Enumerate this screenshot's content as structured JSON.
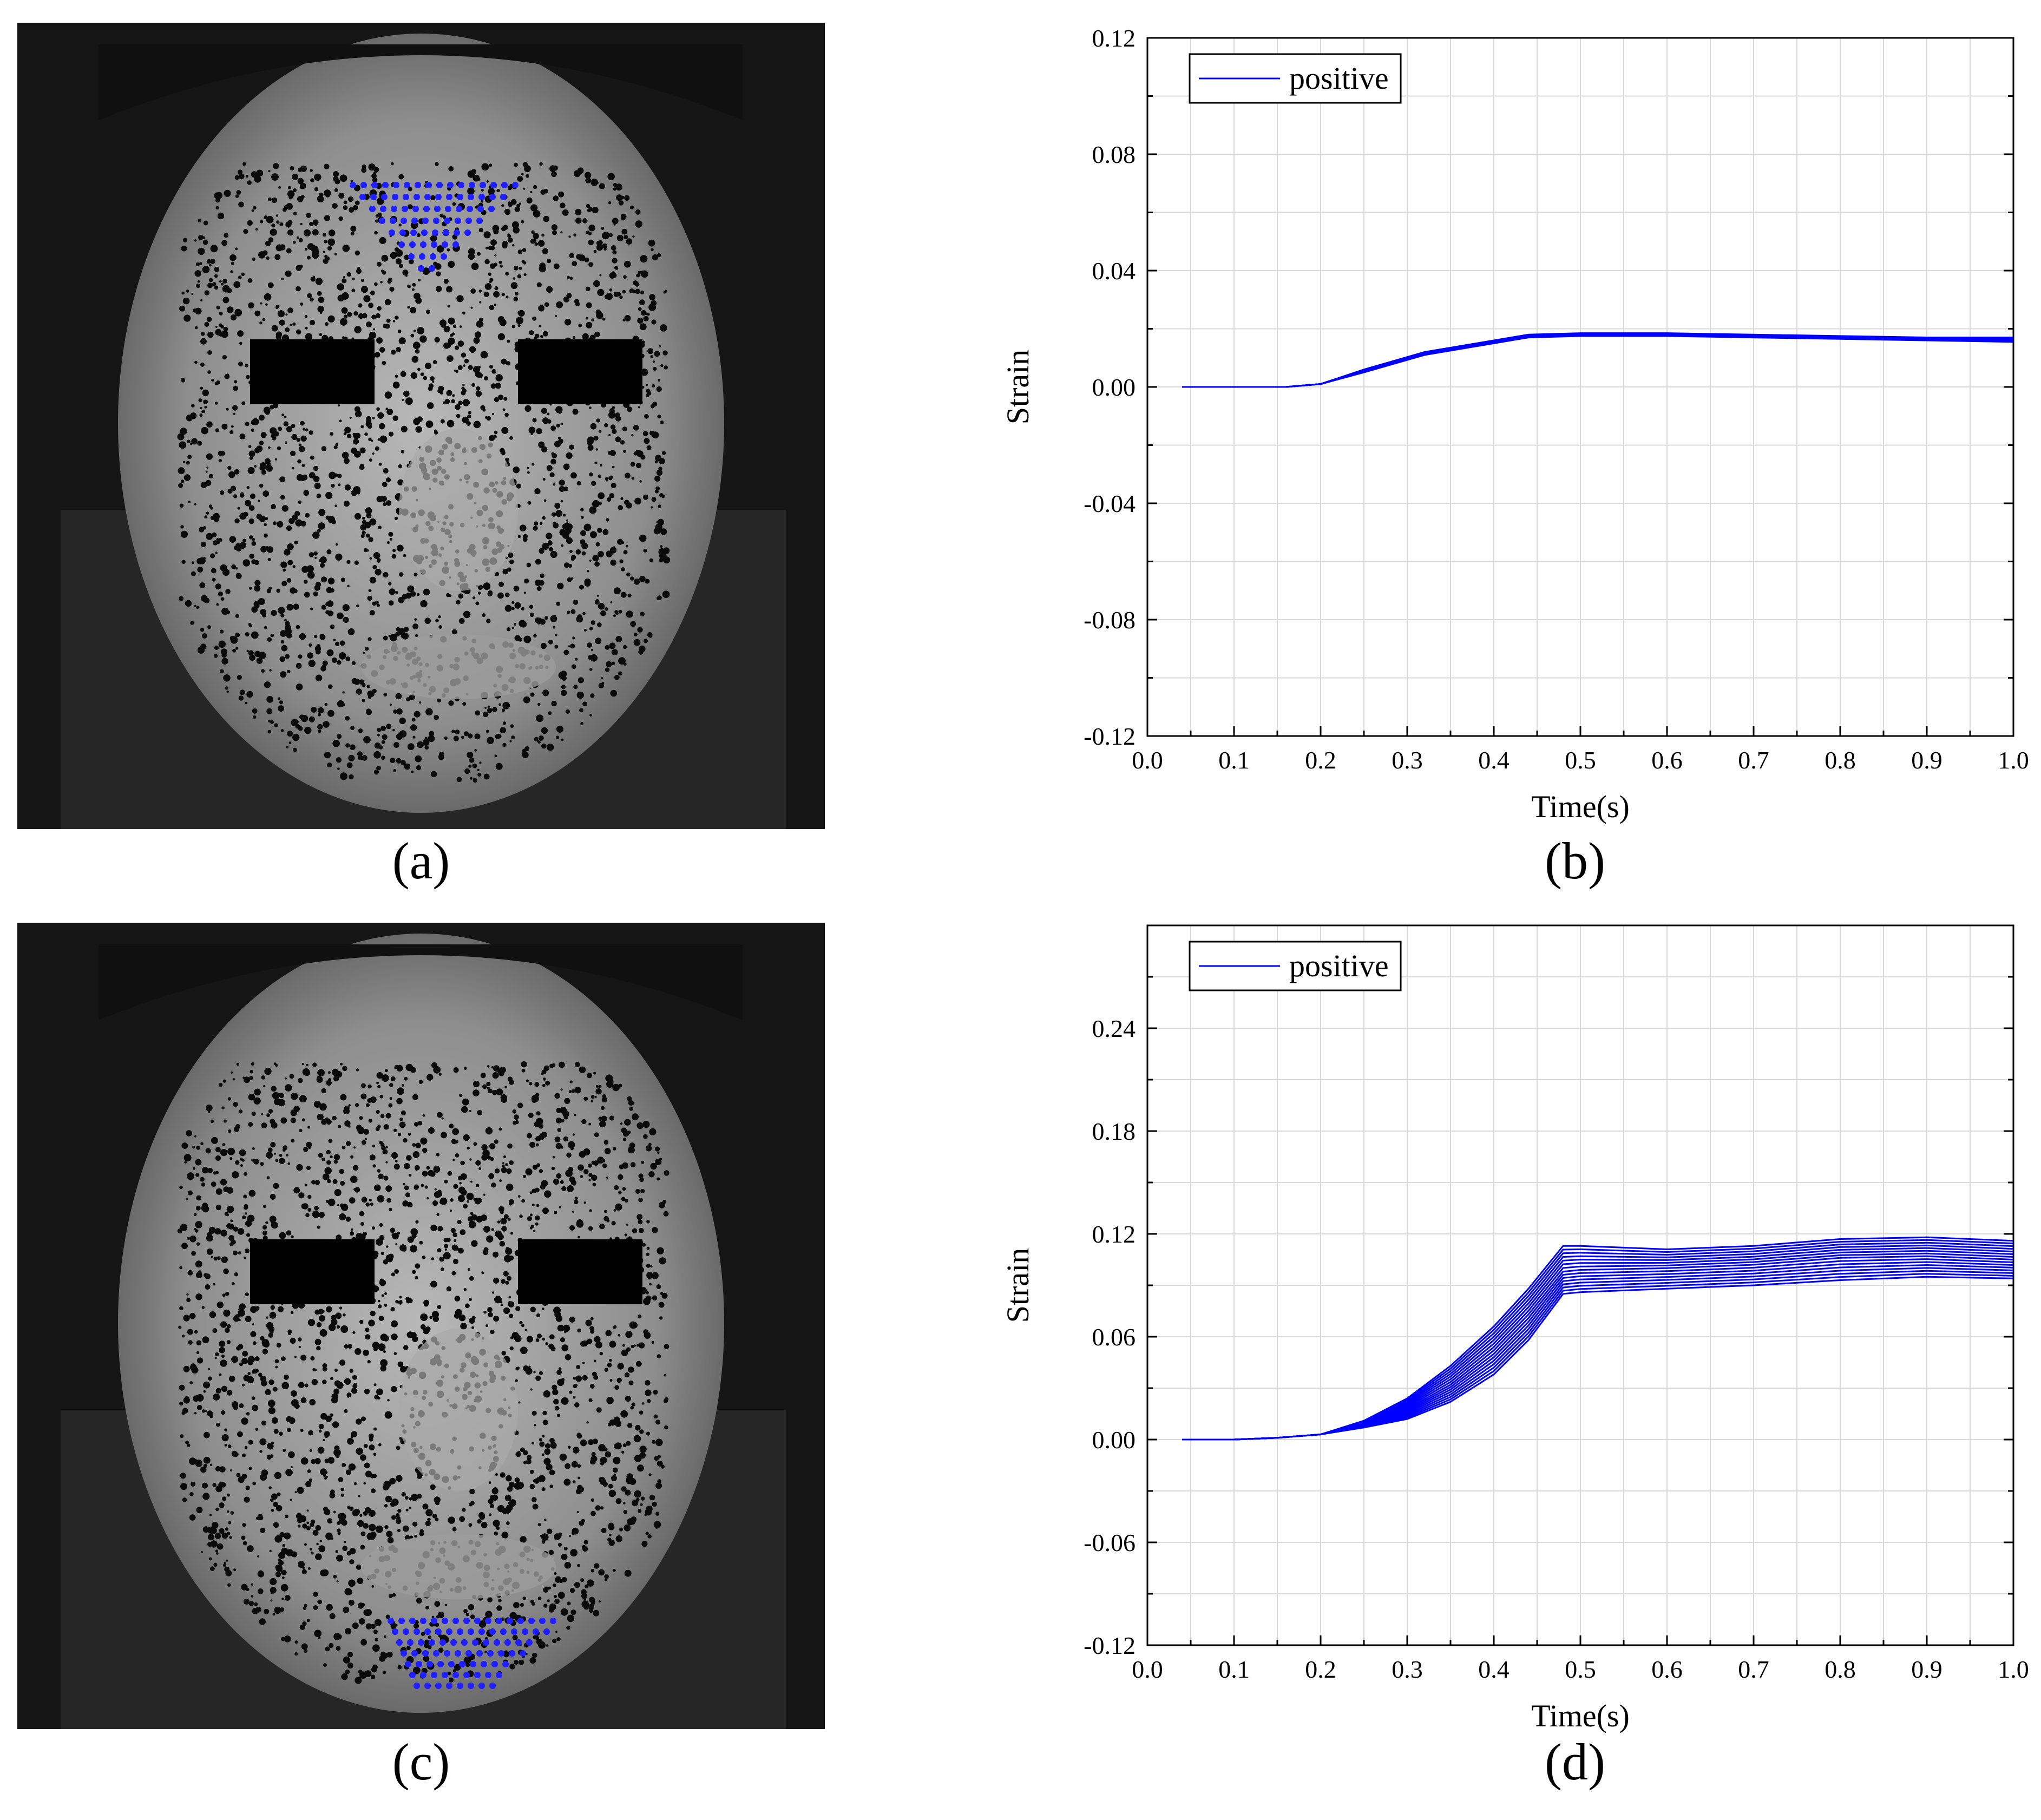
{
  "panels": {
    "a": {
      "label": "(a)"
    },
    "b": {
      "label": "(b)"
    },
    "c": {
      "label": "(c)"
    },
    "d": {
      "label": "(d)"
    }
  },
  "colors": {
    "series": "#0000ff",
    "grid": "#d9d9d9",
    "marker_dots": "#1f1fff",
    "speckle": "#0b0b0b"
  },
  "chart_data": [
    {
      "panel": "b",
      "type": "line",
      "xlabel": "Time(s)",
      "ylabel": "Strain",
      "xlim": [
        0.0,
        1.0
      ],
      "ylim": [
        -0.12,
        0.12
      ],
      "xticks": [
        "0.0",
        "0.1",
        "0.2",
        "0.3",
        "0.4",
        "0.5",
        "0.6",
        "0.7",
        "0.8",
        "0.9",
        "1.0"
      ],
      "yticks": [
        "-0.12",
        "-0.08",
        "-0.04",
        "0.00",
        "0.04",
        "0.08",
        "0.12"
      ],
      "grid": true,
      "legend": {
        "label": "positive",
        "position": "top-left"
      },
      "series": [
        {
          "name": "positive",
          "band": "low",
          "x": [
            0.04,
            0.1,
            0.16,
            0.2,
            0.25,
            0.32,
            0.4,
            0.44,
            0.5,
            0.6,
            0.7,
            0.8,
            0.9,
            1.0
          ],
          "y": [
            0.0,
            0.0,
            0.0,
            0.001,
            0.005,
            0.011,
            0.015,
            0.017,
            0.0175,
            0.0175,
            0.017,
            0.0165,
            0.016,
            0.0155
          ]
        },
        {
          "name": "positive",
          "band": "high",
          "x": [
            0.04,
            0.1,
            0.16,
            0.2,
            0.25,
            0.32,
            0.4,
            0.44,
            0.5,
            0.6,
            0.7,
            0.8,
            0.9,
            1.0
          ],
          "y": [
            0.0,
            0.0,
            0.0,
            0.001,
            0.006,
            0.012,
            0.016,
            0.018,
            0.0185,
            0.0185,
            0.018,
            0.0175,
            0.017,
            0.017
          ]
        }
      ]
    },
    {
      "panel": "d",
      "type": "line",
      "xlabel": "Time(s)",
      "ylabel": "Strain",
      "xlim": [
        0.0,
        1.0
      ],
      "ylim": [
        -0.12,
        0.3
      ],
      "xticks": [
        "0.0",
        "0.1",
        "0.2",
        "0.3",
        "0.4",
        "0.5",
        "0.6",
        "0.7",
        "0.8",
        "0.9",
        "1.0"
      ],
      "yticks": [
        "-0.12",
        "-0.06",
        "0.00",
        "0.06",
        "0.12",
        "0.18",
        "0.24"
      ],
      "grid": true,
      "legend": {
        "label": "positive",
        "position": "top-left"
      },
      "series": [
        {
          "name": "positive",
          "band": "low",
          "x": [
            0.04,
            0.1,
            0.15,
            0.2,
            0.25,
            0.3,
            0.35,
            0.4,
            0.44,
            0.48,
            0.5,
            0.6,
            0.7,
            0.8,
            0.9,
            1.0
          ],
          "y": [
            0.0,
            0.0,
            0.001,
            0.003,
            0.007,
            0.012,
            0.022,
            0.038,
            0.058,
            0.085,
            0.086,
            0.088,
            0.09,
            0.093,
            0.095,
            0.094
          ]
        },
        {
          "name": "positive",
          "band": "mid",
          "x": [
            0.04,
            0.1,
            0.15,
            0.2,
            0.25,
            0.3,
            0.35,
            0.4,
            0.44,
            0.48,
            0.5,
            0.6,
            0.7,
            0.8,
            0.9,
            1.0
          ],
          "y": [
            0.0,
            0.0,
            0.001,
            0.003,
            0.009,
            0.018,
            0.032,
            0.052,
            0.073,
            0.098,
            0.099,
            0.1,
            0.102,
            0.106,
            0.107,
            0.105
          ]
        },
        {
          "name": "positive",
          "band": "high",
          "x": [
            0.04,
            0.1,
            0.15,
            0.2,
            0.25,
            0.3,
            0.35,
            0.4,
            0.44,
            0.48,
            0.5,
            0.6,
            0.7,
            0.8,
            0.9,
            1.0
          ],
          "y": [
            0.0,
            0.0,
            0.001,
            0.003,
            0.011,
            0.024,
            0.043,
            0.066,
            0.088,
            0.113,
            0.113,
            0.111,
            0.113,
            0.117,
            0.118,
            0.116
          ]
        }
      ]
    }
  ]
}
